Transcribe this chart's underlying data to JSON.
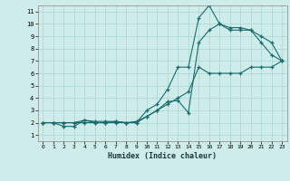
{
  "xlabel": "Humidex (Indice chaleur)",
  "bg_color": "#cdecea",
  "grid_color": "#afd8d6",
  "line_color": "#1a6b6b",
  "xlim": [
    -0.5,
    23.5
  ],
  "ylim": [
    0.5,
    11.5
  ],
  "xticks": [
    0,
    1,
    2,
    3,
    4,
    5,
    6,
    7,
    8,
    9,
    10,
    11,
    12,
    13,
    14,
    15,
    16,
    17,
    18,
    19,
    20,
    21,
    22,
    23
  ],
  "yticks": [
    1,
    2,
    3,
    4,
    5,
    6,
    7,
    8,
    9,
    10,
    11
  ],
  "line1_x": [
    0,
    1,
    2,
    3,
    4,
    5,
    6,
    7,
    8,
    9,
    10,
    11,
    12,
    13,
    14,
    15,
    16,
    17,
    18,
    19,
    20,
    21,
    22,
    23
  ],
  "line1_y": [
    2,
    2,
    2,
    2,
    2,
    2,
    2,
    2,
    2,
    2,
    2.5,
    3,
    3.5,
    4,
    4.5,
    6.5,
    6,
    6,
    6,
    6,
    6.5,
    6.5,
    6.5,
    7
  ],
  "line2_x": [
    0,
    1,
    2,
    3,
    4,
    5,
    6,
    7,
    8,
    9,
    10,
    11,
    12,
    13,
    14,
    15,
    16,
    17,
    18,
    19,
    20,
    21,
    22,
    23
  ],
  "line2_y": [
    2,
    2,
    1.7,
    1.7,
    2.2,
    2.1,
    2.1,
    2.1,
    2.0,
    2.1,
    2.5,
    3.0,
    3.7,
    3.8,
    2.8,
    8.5,
    9.5,
    10,
    9.5,
    9.5,
    9.5,
    8.5,
    7.5,
    7
  ],
  "line3_x": [
    0,
    1,
    2,
    3,
    4,
    5,
    6,
    7,
    8,
    9,
    10,
    11,
    12,
    13,
    14,
    15,
    16,
    17,
    18,
    19,
    20,
    21,
    22,
    23
  ],
  "line3_y": [
    2,
    2,
    2,
    2,
    2.2,
    2,
    2,
    2.1,
    2,
    2,
    3,
    3.5,
    4.7,
    6.5,
    6.5,
    10.5,
    11.5,
    10,
    9.7,
    9.7,
    9.5,
    9.0,
    8.5,
    7
  ]
}
